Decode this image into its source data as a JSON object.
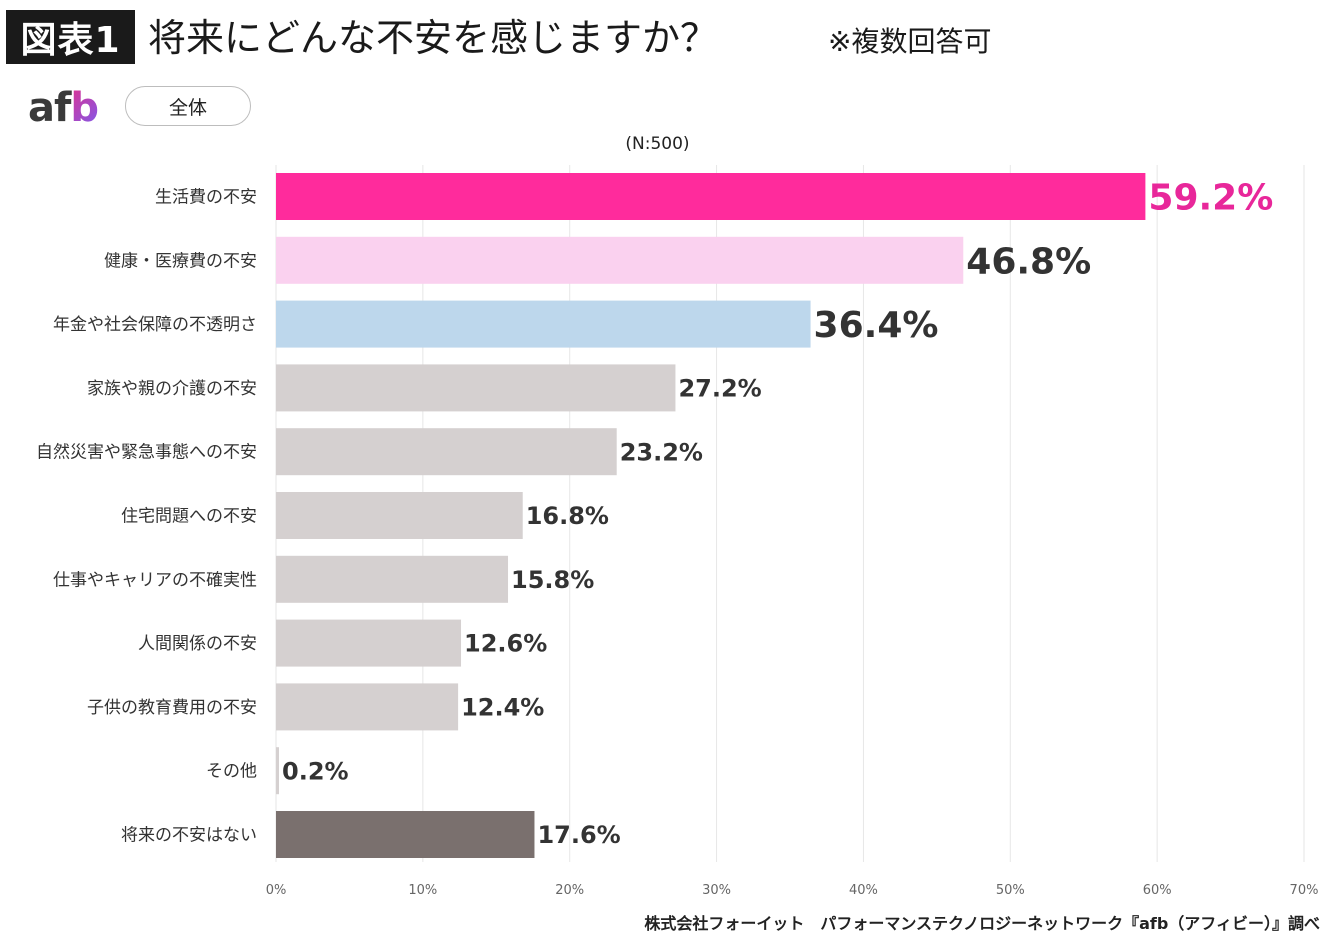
{
  "header": {
    "figure_tag": "図表1",
    "title": "将来にどんな不安を感じますか？",
    "note": "※複数回答可"
  },
  "logo": {
    "prefix": "af",
    "suffix": "b"
  },
  "segment": {
    "label": "全体"
  },
  "sample_note": "(N:500)",
  "footer": "株式会社フォーイット　パフォーマンステクノロジーネットワーク『afb（アフィビー）』調べ",
  "colors": {
    "top": "#ff2b9c",
    "second": "#fad1ef",
    "third": "#bdd7ec",
    "default": "#d5d0d0",
    "none": "#7a706e",
    "top_label": "#e8279a",
    "label": "#333333",
    "grid": "#e6e6e6"
  },
  "chart_data": {
    "type": "bar",
    "orientation": "horizontal",
    "title": "",
    "xlabel": "",
    "ylabel": "",
    "xlim": [
      0,
      70
    ],
    "xticks": [
      0,
      10,
      20,
      30,
      40,
      50,
      60,
      70
    ],
    "xtick_labels": [
      "0%",
      "10%",
      "20%",
      "30%",
      "40%",
      "50%",
      "60%",
      "70%"
    ],
    "grid": "vertical",
    "categories": [
      "生活費の不安",
      "健康・医療費の不安",
      "年金や社会保障の不透明さ",
      "家族や親の介護の不安",
      "自然災害や緊急事態への不安",
      "住宅問題への不安",
      "仕事やキャリアの不確実性",
      "人間関係の不安",
      "子供の教育費用の不安",
      "その他",
      "将来の不安はない"
    ],
    "values": [
      59.2,
      46.8,
      36.4,
      27.2,
      23.2,
      16.8,
      15.8,
      12.6,
      12.4,
      0.2,
      17.6
    ],
    "value_labels": [
      "59.2%",
      "46.8%",
      "36.4%",
      "27.2%",
      "23.2%",
      "16.8%",
      "15.8%",
      "12.6%",
      "12.4%",
      "0.2%",
      "17.6%"
    ]
  }
}
